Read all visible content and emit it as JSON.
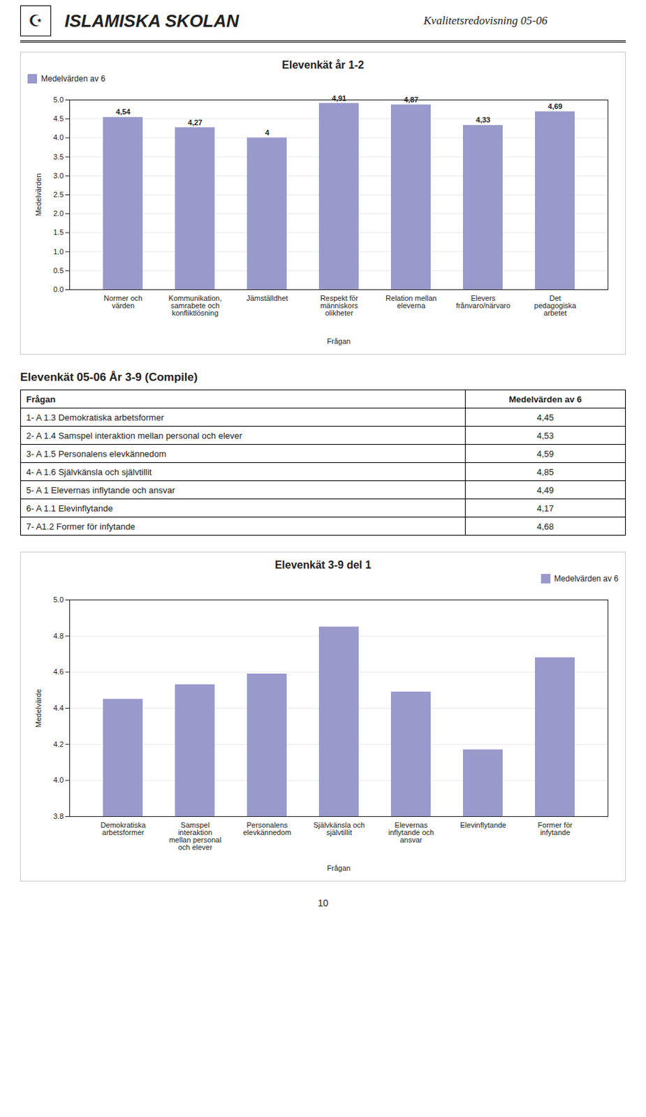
{
  "annotations": [
    "☪",
    "ISLAMISKA SKOLAN",
    "Kvalitetsredovisning 05-06",
    "10"
  ],
  "chart_data": [
    {
      "type": "bar",
      "title": "Elevenkät år 1-2",
      "xlabel": "Frågan",
      "ylabel": "Medelvärden",
      "categories": [
        "Normer och\nvärden",
        "Kommunikation,\nsamrabete och\nkonfliktlösning",
        "Jämställdhet",
        "Respekt för\nmänniskors\nolikheter",
        "Relation mellan\neleverna",
        "Elevers\nfrånvaro/närvaro",
        "Det\npedagogiska\narbetet"
      ],
      "series": [
        {
          "name": "Medelvärden av 6",
          "color": "#9999CC",
          "values": [
            4.54,
            4.27,
            4.0,
            4.91,
            4.87,
            4.33,
            4.69
          ],
          "value_labels": [
            "4,54",
            "4,27",
            "4",
            "4,91",
            "4,87",
            "4,33",
            "4,69"
          ]
        }
      ],
      "ylim": [
        0,
        5
      ],
      "yticks": [
        {
          "value": 0,
          "label": "0.0"
        },
        0.5,
        {
          "value": 1,
          "label": "1.0"
        },
        1.5,
        {
          "value": 2,
          "label": "2.0"
        },
        2.5,
        {
          "value": 3,
          "label": "3.0"
        },
        3.5,
        {
          "value": 4,
          "label": "4.0"
        },
        4.5,
        {
          "value": 5,
          "label": "5.0"
        }
      ],
      "grid": true,
      "legend": "upper left",
      "data_labels": true
    },
    {
      "type": "table",
      "title": "Elevenkät  05-06  År 3-9  (Compile)",
      "columns": [
        "Frågan",
        "Medelvärden av 6"
      ],
      "rows": [
        [
          "1- A 1.3 Demokratiska arbetsformer",
          "4,45"
        ],
        [
          "2- A 1.4 Samspel interaktion mellan personal och elever",
          "4,53"
        ],
        [
          "3- A 1.5 Personalens elevkännedom",
          "4,59"
        ],
        [
          "4- A 1.6 Självkänsla och självtillit",
          "4,85"
        ],
        [
          "5- A 1 Elevernas inflytande och ansvar",
          "4,49"
        ],
        [
          "6- A 1.1 Elevinflytande",
          "4,17"
        ],
        [
          "7- A1.2 Former för infytande",
          "4,68"
        ]
      ]
    },
    {
      "type": "bar",
      "title": "Elevenkät 3-9 del 1",
      "xlabel": "Frågan",
      "ylabel": "Medelvärde",
      "categories": [
        "Demokratiska\narbetsformer",
        "Samspel\ninteraktion\nmellan personal\noch elever",
        "Personalens\nelevkännedom",
        "Självkänsla och\nsjälvtillit",
        "Elevernas\ninflytande och\nansvar",
        "Elevinflytande",
        "Former för\ninfytande"
      ],
      "series": [
        {
          "name": "Medelvärden av 6",
          "color": "#9999CC",
          "values": [
            4.45,
            4.53,
            4.59,
            4.85,
            4.49,
            4.17,
            4.68
          ]
        }
      ],
      "ylim": [
        3.8,
        5.0
      ],
      "yticks": [
        3.8,
        {
          "value": 4.0,
          "label": "4.0"
        },
        4.2,
        4.4,
        4.6,
        4.8,
        {
          "value": 5.0,
          "label": "5.0"
        }
      ],
      "grid": true,
      "legend": "upper right",
      "data_labels": false
    }
  ]
}
